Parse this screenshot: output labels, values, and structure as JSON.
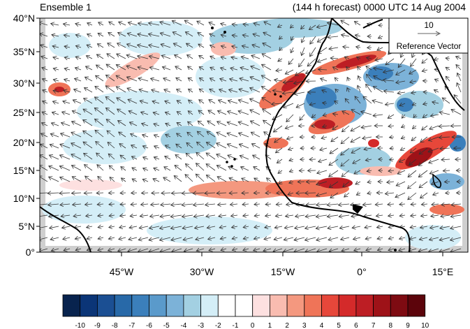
{
  "header": {
    "left_title": "Ensemble 1",
    "right_title": "(144 h forecast) 0000 UTC 14 Aug 2004"
  },
  "map": {
    "lat_labels": [
      "40°N",
      "35°N",
      "30°N",
      "25°N",
      "20°N",
      "15°N",
      "10°N",
      "5°N",
      "0°"
    ],
    "lon_labels": [
      "45°W",
      "30°W",
      "15°W",
      "0°",
      "15°E"
    ]
  },
  "reference_vector": {
    "value": "10",
    "label": "Reference Vector"
  },
  "colorbar": {
    "labels": [
      "-10",
      "-9",
      "-8",
      "-7",
      "-6",
      "-5",
      "-4",
      "-3",
      "-2",
      "-1",
      "0",
      "1",
      "2",
      "3",
      "4",
      "5",
      "6",
      "7",
      "8",
      "9",
      "10"
    ],
    "colors": [
      "#08234e",
      "#0b3577",
      "#1b4f93",
      "#2869a8",
      "#3b7fbb",
      "#5a9acb",
      "#7cb2d8",
      "#a3d0e2",
      "#d4eef7",
      "#ffffff",
      "#ffffff",
      "#fde0e0",
      "#f9bcb0",
      "#f4987f",
      "#ef7458",
      "#e7473a",
      "#d42a2a",
      "#bd1e24",
      "#9e1218",
      "#7e0b12",
      "#5c040b"
    ]
  }
}
